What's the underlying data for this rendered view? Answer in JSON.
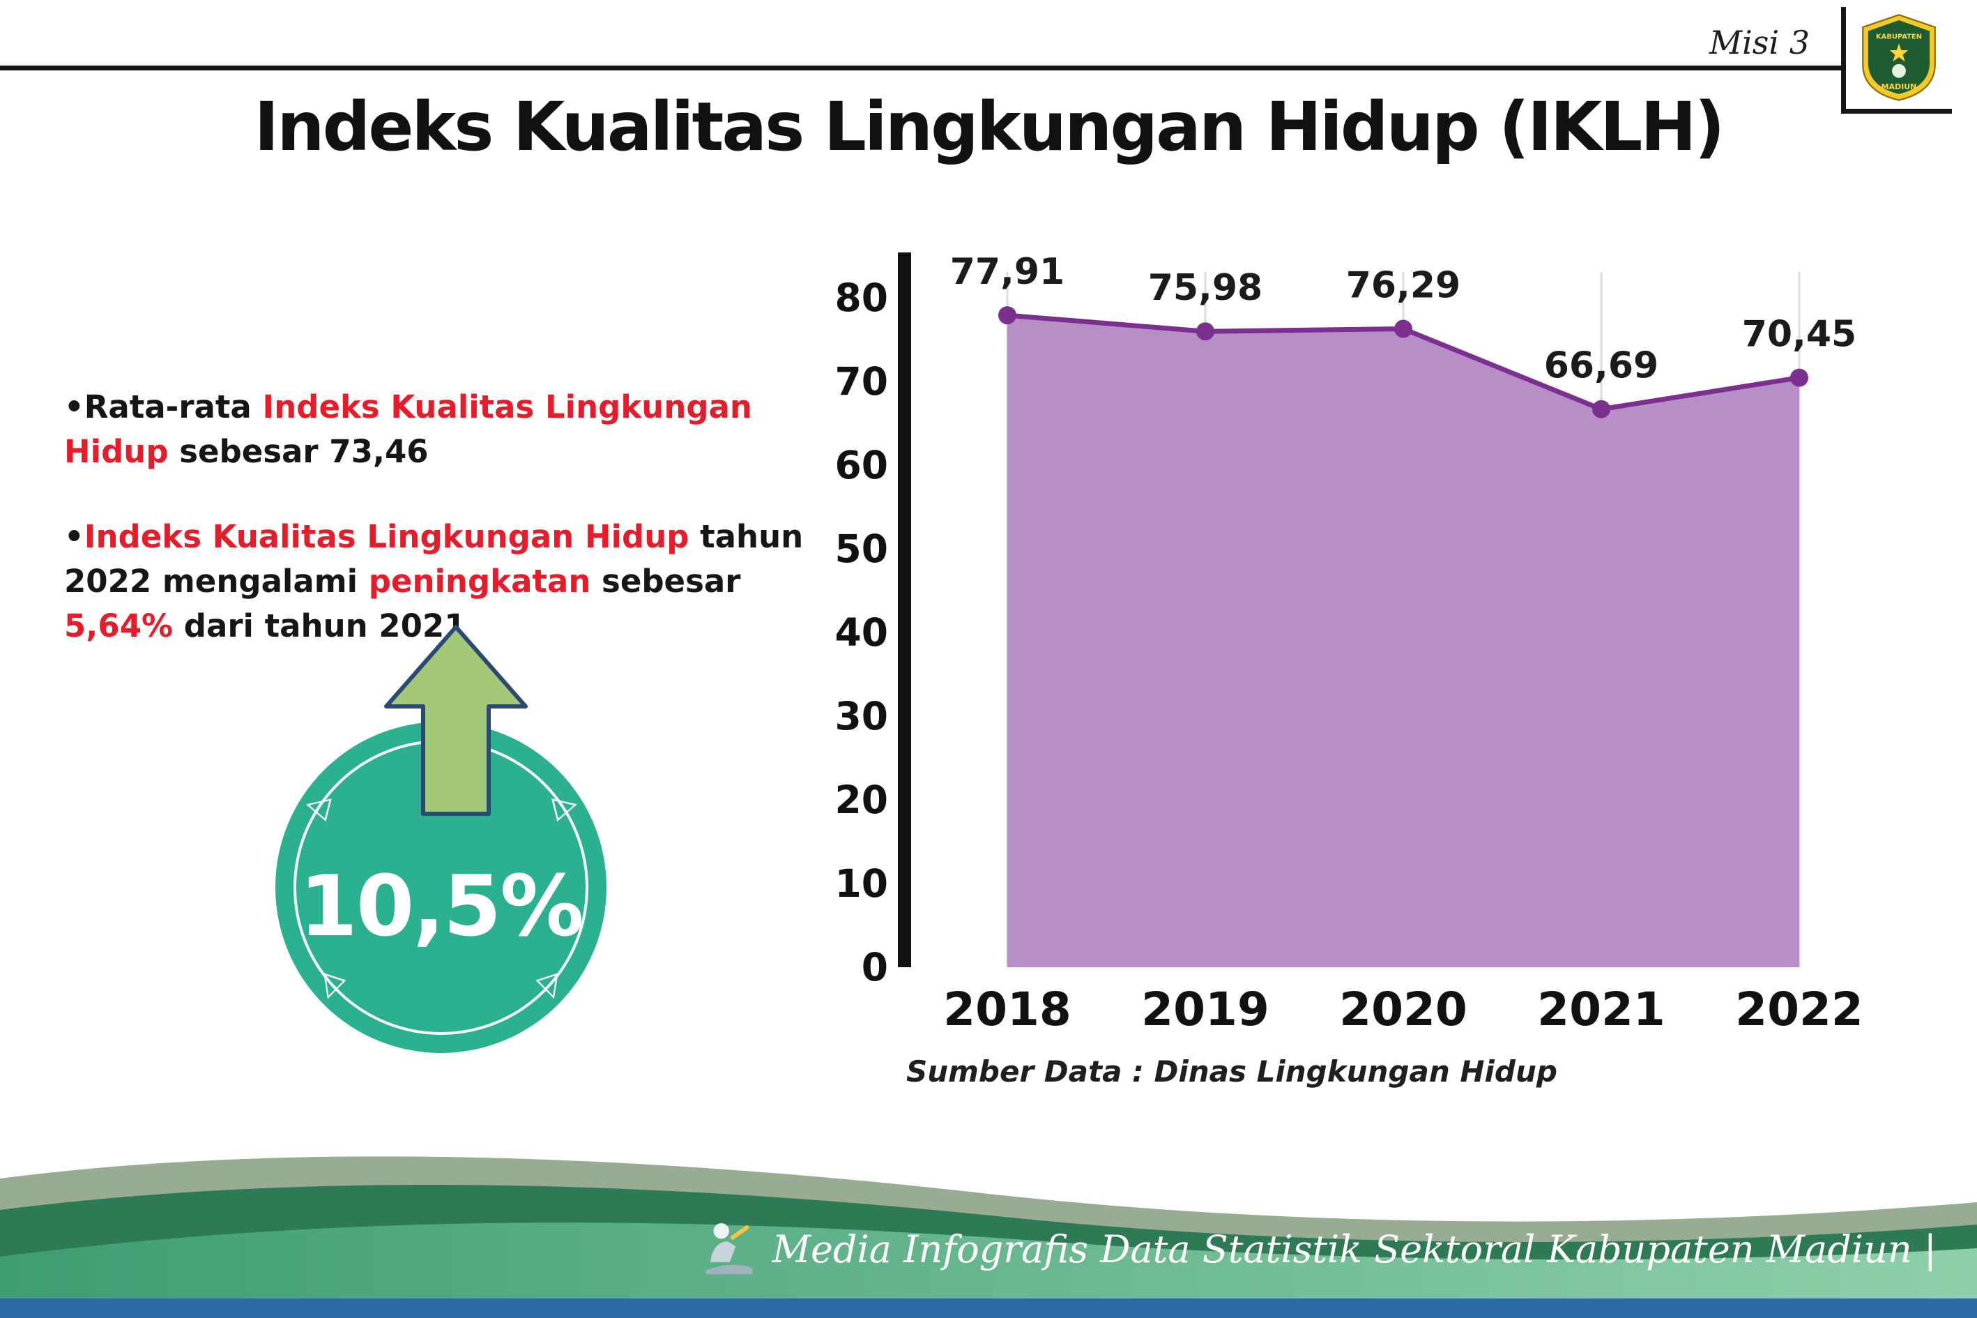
{
  "header": {
    "misi_label": "Misi 3",
    "title": "Indeks Kualitas Lingkungan Hidup (IKLH)",
    "logo_top_text": "KABUPATEN",
    "logo_bottom_text": "MADIUN"
  },
  "bullets": {
    "bullet_char": "•",
    "b1": {
      "part1": "Rata-rata ",
      "part2": "Indeks Kualitas Lingkungan Hidup",
      "part3": " sebesar 73,46"
    },
    "b2": {
      "part1": "Indeks Kualitas Lingkungan Hidup",
      "part2": " tahun 2022 mengalami ",
      "part3": "peningkatan",
      "part4": " sebesar ",
      "part5": "5,64%",
      "part6": " dari tahun 2021"
    }
  },
  "badge": {
    "value": "10,5%",
    "direction": "up"
  },
  "icons": {
    "triangle_left": "◁",
    "triangle_right": "▷",
    "triangle_down": "▽",
    "arrow": "up-arrow-icon",
    "mascot": "writer-mascot-icon",
    "logo": "kabupaten-madiun-crest"
  },
  "chart_data": {
    "type": "area",
    "categories": [
      "2018",
      "2019",
      "2020",
      "2021",
      "2022"
    ],
    "values": [
      77.91,
      75.98,
      76.29,
      66.69,
      70.45
    ],
    "value_labels": [
      "77,91",
      "75,98",
      "76,29",
      "66,69",
      "70,45"
    ],
    "ylim": [
      0,
      80
    ],
    "yticks": [
      0,
      10,
      20,
      30,
      40,
      50,
      60,
      70,
      80
    ],
    "grid": "vertical",
    "legend": "none",
    "area_color": "#b78fc6",
    "line_color": "#7b2f8e",
    "source_note": "Sumber Data : Dinas Lingkungan Hidup"
  },
  "footer": {
    "credit": "Media Infografis Data Statistik Sektoral Kabupaten Madiun |"
  },
  "colors": {
    "accent_red": "#e51d2a",
    "badge_teal": "#2cb190",
    "arrow_green": "#a3c878",
    "footer_sage": "#97ac92",
    "footer_dark_green": "#2d7a55",
    "footer_green": "#5fb287",
    "footer_blue": "#2d6ba6"
  }
}
